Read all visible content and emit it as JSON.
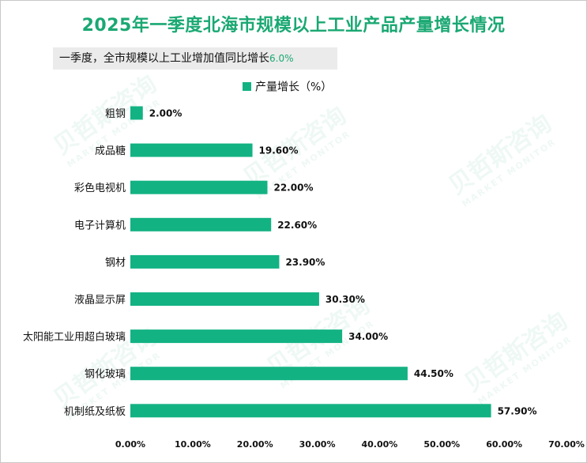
{
  "title": "2025年一季度北海市规模以上工业产品产量增长情况",
  "subtitle": {
    "text": "一季度，全市规模以上工业增加值同比增长",
    "value": "6.0%"
  },
  "watermark": {
    "name": "贝哲斯咨询",
    "tagline": "MARKET MONITOR"
  },
  "colors": {
    "bar": "#13b283",
    "title": "#1aa873",
    "text": "#111111",
    "grid": "#e6e6e6"
  },
  "chart_data": {
    "type": "bar",
    "orientation": "horizontal",
    "categories": [
      "粗钢",
      "成品糖",
      "彩色电视机",
      "电子计算机",
      "钢材",
      "液晶显示屏",
      "太阳能工业用超白玻璃",
      "钢化玻璃",
      "机制纸及纸板"
    ],
    "series": [
      {
        "name": "产量增长（%）",
        "values": [
          2.0,
          19.6,
          22.0,
          22.6,
          23.9,
          30.3,
          34.0,
          44.5,
          57.9
        ],
        "value_labels": [
          "2.00%",
          "19.60%",
          "22.00%",
          "22.60%",
          "23.90%",
          "30.30%",
          "34.00%",
          "44.50%",
          "57.90%"
        ]
      }
    ],
    "xlim": [
      0,
      70
    ],
    "x_ticks": [
      0,
      10,
      20,
      30,
      40,
      50,
      60,
      70
    ],
    "x_tick_labels": [
      "0.00%",
      "10.00%",
      "20.00%",
      "30.00%",
      "40.00%",
      "50.00%",
      "60.00%",
      "70.00%"
    ],
    "legend_position": "top",
    "data_labels": true
  }
}
